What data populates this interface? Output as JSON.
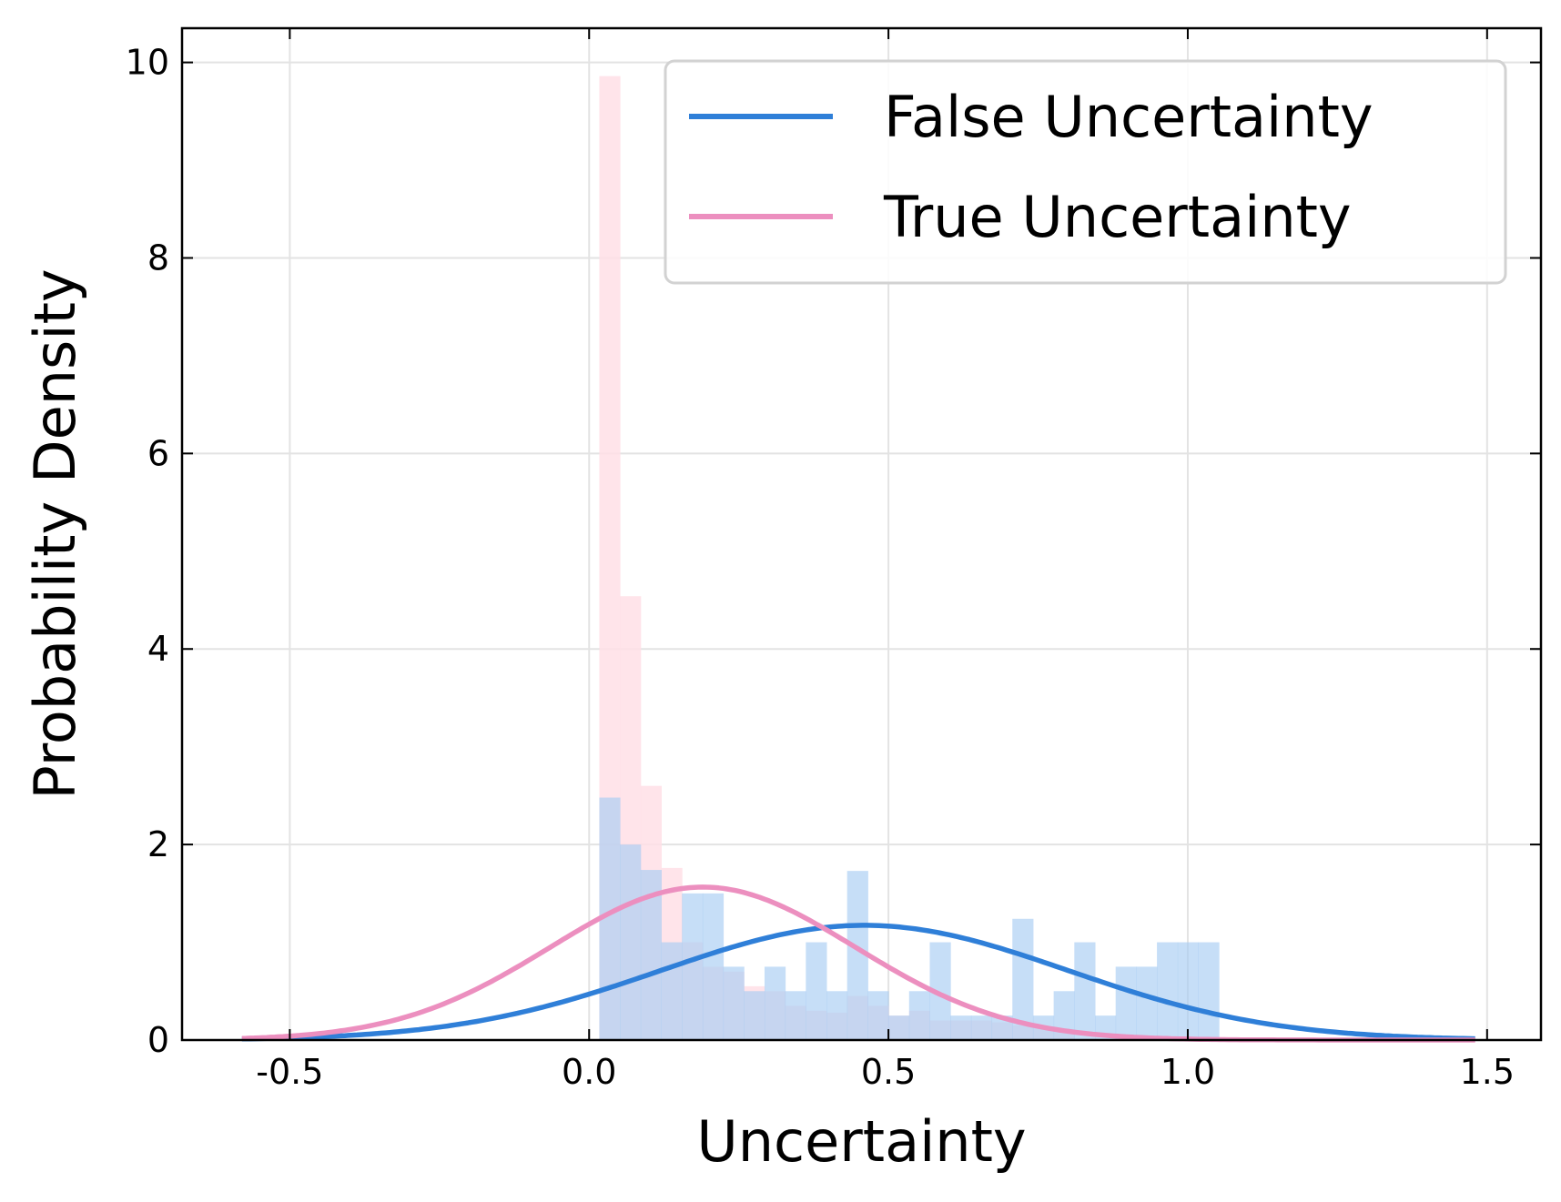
{
  "chart_data": {
    "type": "histogram",
    "xlabel": "Uncertainty",
    "ylabel": "Probability Density",
    "xlim": [
      -0.68,
      1.59
    ],
    "ylim": [
      0,
      10.35
    ],
    "xticks": [
      {
        "value": -0.5,
        "label": "-0.5"
      },
      {
        "value": 0.0,
        "label": "0.0"
      },
      {
        "value": 0.5,
        "label": "0.5"
      },
      {
        "value": 1.0,
        "label": "1.0"
      },
      {
        "value": 1.5,
        "label": "1.5"
      }
    ],
    "yticks": [
      {
        "value": 0,
        "label": "0"
      },
      {
        "value": 2,
        "label": "2"
      },
      {
        "value": 4,
        "label": "4"
      },
      {
        "value": 6,
        "label": "6"
      },
      {
        "value": 8,
        "label": "8"
      },
      {
        "value": 10,
        "label": "10"
      }
    ],
    "grid": true,
    "legend_position": "top-right",
    "series": [
      {
        "name": "False Uncertainty",
        "color": "#2f7fd8",
        "hist_color": "#a7cdf2",
        "bin_width": 0.0345,
        "bin_start": 0.017,
        "hist_values": [
          2.48,
          2.0,
          1.74,
          1.0,
          1.5,
          1.5,
          0.75,
          0.5,
          0.75,
          0.5,
          1.0,
          0.5,
          1.73,
          0.5,
          0.25,
          0.5,
          1.0,
          0.25,
          0.25,
          0.25,
          1.24,
          0.25,
          0.5,
          1.0,
          0.25,
          0.75,
          0.75,
          1.0,
          1.0,
          1.0
        ],
        "fit_mean": 0.46,
        "fit_std": 0.34
      },
      {
        "name": "True Uncertainty",
        "color": "#ec8fbf",
        "hist_color": "#ffdfe6",
        "bin_width": 0.0345,
        "bin_start": 0.017,
        "hist_values": [
          9.86,
          4.54,
          2.6,
          1.76,
          1.0,
          0.75,
          0.7,
          0.55,
          0.5,
          0.35,
          0.3,
          0.28,
          0.45,
          0.35,
          0.25,
          0.3,
          0.2,
          0.2,
          0.2,
          0.18,
          0.15,
          0.12,
          0.1
        ],
        "fit_mean": 0.19,
        "fit_std": 0.255
      }
    ],
    "fit_range": [
      -0.58,
      1.48
    ]
  }
}
